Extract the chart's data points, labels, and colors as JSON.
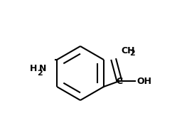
{
  "background_color": "#ffffff",
  "line_color": "#000000",
  "text_color": "#000000",
  "line_width": 1.5,
  "font_size": 9,
  "fig_width": 2.49,
  "fig_height": 1.73,
  "dpi": 100,
  "ch2_label": "CH2",
  "oh_label": "OH",
  "c_label": "C",
  "nh2_label": "H2N",
  "xlim": [
    0,
    249
  ],
  "ylim": [
    0,
    173
  ]
}
